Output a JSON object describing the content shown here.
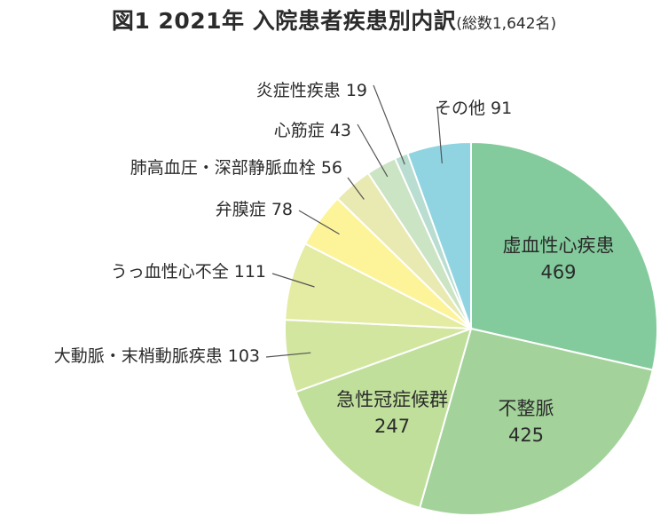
{
  "title": {
    "main": "図1 2021年 入院患者疾患別内訳",
    "sub": "(総数1,642名)"
  },
  "chart_data": {
    "type": "pie",
    "title": "図1 2021年 入院患者疾患別内訳(総数1,642名)",
    "total": 1642,
    "start": "12 o'clock, clockwise",
    "slices": [
      {
        "name": "虚血性心疾患",
        "value": 469,
        "color": "#83cb9c",
        "label_style": "inside"
      },
      {
        "name": "不整脈",
        "value": 425,
        "color": "#a3d39a",
        "label_style": "inside"
      },
      {
        "name": "急性冠症候群",
        "value": 247,
        "color": "#bfdf9b",
        "label_style": "inside"
      },
      {
        "name": "大動脈・末梢動脈疾患",
        "value": 103,
        "color": "#d2e6a0",
        "label_style": "outside"
      },
      {
        "name": "うっ血性心不全",
        "value": 111,
        "color": "#e4eba2",
        "label_style": "outside"
      },
      {
        "name": "弁膜症",
        "value": 78,
        "color": "#fdf49a",
        "label_style": "outside"
      },
      {
        "name": "肺高血圧・深部静脈血栓",
        "value": 56,
        "color": "#e9e9b2",
        "label_style": "outside"
      },
      {
        "name": "心筋症",
        "value": 43,
        "color": "#cbe4c4",
        "label_style": "outside"
      },
      {
        "name": "炎症性疾患",
        "value": 19,
        "color": "#b9ddd0",
        "label_style": "outside"
      },
      {
        "name": "その他",
        "value": 91,
        "color": "#90d4e2",
        "label_style": "outside"
      }
    ]
  }
}
